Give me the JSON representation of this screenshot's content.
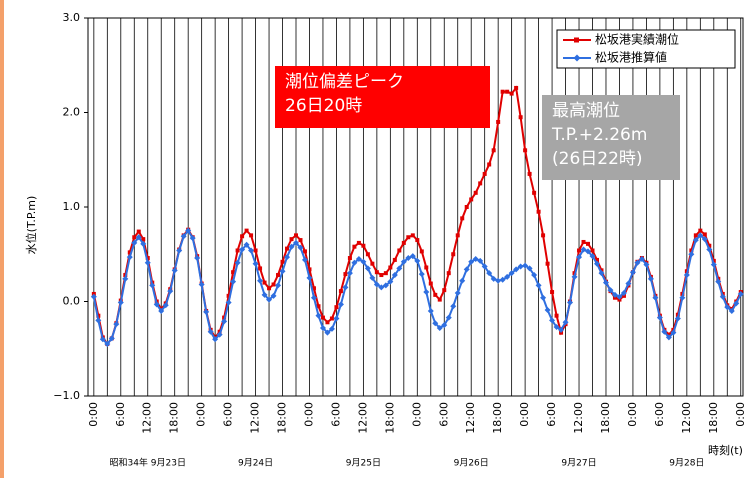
{
  "chart_data": {
    "type": "line",
    "ylabel": "水位(T.P.m)",
    "xlabel": "時刻(t)",
    "x": [
      0,
      1,
      2,
      3,
      4,
      5,
      6,
      7,
      8,
      9,
      10,
      11,
      12,
      13,
      14,
      15,
      16,
      17,
      18,
      19,
      20,
      21,
      22,
      23,
      24,
      25,
      26,
      27,
      28,
      29,
      30,
      31,
      32,
      33,
      34,
      35,
      36,
      37,
      38,
      39,
      40,
      41,
      42,
      43,
      44,
      45,
      46,
      47,
      48,
      49,
      50,
      51,
      52,
      53,
      54,
      55,
      56,
      57,
      58,
      59,
      60,
      61,
      62,
      63,
      64,
      65,
      66,
      67,
      68,
      69,
      70,
      71,
      72,
      73,
      74,
      75,
      76,
      77,
      78,
      79,
      80,
      81,
      82,
      83,
      84,
      85,
      86,
      87,
      88,
      89,
      90,
      91,
      92,
      93,
      94,
      95,
      96,
      97,
      98,
      99,
      100,
      101,
      102,
      103,
      104,
      105,
      106,
      107,
      108,
      109,
      110,
      111,
      112,
      113,
      114,
      115,
      116,
      117,
      118,
      119,
      120,
      121,
      122,
      123,
      124,
      125,
      126,
      127,
      128,
      129,
      130,
      131,
      132,
      133,
      134,
      135,
      136,
      137,
      138,
      139,
      140,
      141,
      142,
      143,
      144
    ],
    "series": [
      {
        "name": "松坂港実績潮位",
        "color": "#e00000",
        "marker": "square",
        "values": [
          0.08,
          -0.15,
          -0.38,
          -0.45,
          -0.39,
          -0.23,
          0.01,
          0.28,
          0.52,
          0.68,
          0.74,
          0.66,
          0.46,
          0.2,
          0.0,
          -0.08,
          -0.02,
          0.13,
          0.34,
          0.55,
          0.7,
          0.76,
          0.68,
          0.48,
          0.19,
          -0.1,
          -0.3,
          -0.38,
          -0.32,
          -0.17,
          0.06,
          0.31,
          0.54,
          0.69,
          0.75,
          0.7,
          0.54,
          0.35,
          0.2,
          0.14,
          0.18,
          0.28,
          0.42,
          0.56,
          0.66,
          0.7,
          0.65,
          0.53,
          0.34,
          0.14,
          -0.05,
          -0.17,
          -0.22,
          -0.18,
          -0.06,
          0.11,
          0.29,
          0.46,
          0.58,
          0.62,
          0.59,
          0.5,
          0.4,
          0.31,
          0.28,
          0.3,
          0.36,
          0.44,
          0.54,
          0.62,
          0.68,
          0.7,
          0.65,
          0.53,
          0.36,
          0.19,
          0.07,
          0.02,
          0.12,
          0.3,
          0.5,
          0.7,
          0.88,
          1.0,
          1.08,
          1.15,
          1.25,
          1.35,
          1.45,
          1.6,
          1.9,
          2.22,
          2.22,
          2.2,
          2.26,
          1.95,
          1.6,
          1.35,
          1.15,
          0.95,
          0.7,
          0.4,
          0.1,
          -0.15,
          -0.33,
          -0.24,
          0.0,
          0.3,
          0.54,
          0.63,
          0.61,
          0.54,
          0.44,
          0.33,
          0.21,
          0.11,
          0.04,
          0.02,
          0.06,
          0.17,
          0.31,
          0.42,
          0.46,
          0.41,
          0.26,
          0.06,
          -0.15,
          -0.3,
          -0.35,
          -0.3,
          -0.14,
          0.08,
          0.32,
          0.54,
          0.7,
          0.75,
          0.71,
          0.59,
          0.43,
          0.24,
          0.08,
          -0.04,
          -0.08,
          0.0,
          0.1
        ]
      },
      {
        "name": "松坂港推算値",
        "color": "#2f6fe0",
        "marker": "diamond",
        "values": [
          0.05,
          -0.2,
          -0.4,
          -0.45,
          -0.39,
          -0.24,
          -0.01,
          0.24,
          0.47,
          0.62,
          0.68,
          0.61,
          0.41,
          0.17,
          -0.03,
          -0.1,
          -0.04,
          0.11,
          0.33,
          0.54,
          0.69,
          0.75,
          0.67,
          0.46,
          0.18,
          -0.11,
          -0.32,
          -0.4,
          -0.35,
          -0.21,
          -0.01,
          0.21,
          0.41,
          0.55,
          0.6,
          0.54,
          0.4,
          0.22,
          0.07,
          0.02,
          0.06,
          0.17,
          0.32,
          0.47,
          0.58,
          0.62,
          0.57,
          0.44,
          0.25,
          0.04,
          -0.15,
          -0.28,
          -0.33,
          -0.29,
          -0.18,
          -0.03,
          0.15,
          0.3,
          0.41,
          0.45,
          0.42,
          0.35,
          0.25,
          0.18,
          0.15,
          0.17,
          0.21,
          0.28,
          0.35,
          0.42,
          0.46,
          0.48,
          0.43,
          0.29,
          0.1,
          -0.1,
          -0.23,
          -0.28,
          -0.25,
          -0.17,
          -0.05,
          0.09,
          0.22,
          0.34,
          0.42,
          0.45,
          0.43,
          0.37,
          0.3,
          0.24,
          0.22,
          0.23,
          0.26,
          0.3,
          0.34,
          0.37,
          0.38,
          0.35,
          0.28,
          0.17,
          0.04,
          -0.09,
          -0.2,
          -0.27,
          -0.3,
          -0.22,
          -0.01,
          0.26,
          0.47,
          0.55,
          0.53,
          0.48,
          0.4,
          0.3,
          0.2,
          0.12,
          0.07,
          0.05,
          0.09,
          0.19,
          0.31,
          0.41,
          0.45,
          0.39,
          0.24,
          0.04,
          -0.17,
          -0.32,
          -0.38,
          -0.33,
          -0.18,
          0.04,
          0.28,
          0.5,
          0.65,
          0.7,
          0.66,
          0.55,
          0.39,
          0.21,
          0.05,
          -0.06,
          -0.1,
          -0.02,
          0.08
        ]
      }
    ],
    "xlim": [
      -1.3,
      144.5
    ],
    "ylim": [
      -1,
      3
    ],
    "yticks": [
      {
        "value": -1,
        "label": "−1.0"
      },
      {
        "value": 0,
        "label": "0.0"
      },
      {
        "value": 1,
        "label": "1.0"
      },
      {
        "value": 2,
        "label": "2.0"
      },
      {
        "value": 3,
        "label": "3.0"
      }
    ],
    "xticks": [
      {
        "value": 0,
        "label": "0:00"
      },
      {
        "value": 6,
        "label": "6:00"
      },
      {
        "value": 12,
        "label": "12:00"
      },
      {
        "value": 18,
        "label": "18:00"
      },
      {
        "value": 24,
        "label": "0:00"
      },
      {
        "value": 30,
        "label": "6:00"
      },
      {
        "value": 36,
        "label": "12:00"
      },
      {
        "value": 42,
        "label": "18:00"
      },
      {
        "value": 48,
        "label": "0:00"
      },
      {
        "value": 54,
        "label": "6:00"
      },
      {
        "value": 60,
        "label": "12:00"
      },
      {
        "value": 66,
        "label": "18:00"
      },
      {
        "value": 72,
        "label": "0:00"
      },
      {
        "value": 78,
        "label": "6:00"
      },
      {
        "value": 84,
        "label": "12:00"
      },
      {
        "value": 90,
        "label": "18:00"
      },
      {
        "value": 96,
        "label": "0:00"
      },
      {
        "value": 102,
        "label": "6:00"
      },
      {
        "value": 108,
        "label": "12:00"
      },
      {
        "value": 114,
        "label": "18:00"
      },
      {
        "value": 120,
        "label": "0:00"
      },
      {
        "value": 126,
        "label": "6:00"
      },
      {
        "value": 132,
        "label": "12:00"
      },
      {
        "value": 138,
        "label": "18:00"
      },
      {
        "value": 144,
        "label": "0:00"
      }
    ],
    "xminorticks": [
      3,
      9,
      15,
      21,
      27,
      33,
      39,
      45,
      51,
      57,
      63,
      69,
      75,
      81,
      87,
      93,
      99,
      105,
      111,
      117,
      123,
      129,
      135,
      141
    ],
    "date_labels": [
      {
        "value": 12,
        "label": "昭和34年 9月23日"
      },
      {
        "value": 36,
        "label": "9月24日"
      },
      {
        "value": 60,
        "label": "9月25日"
      },
      {
        "value": 84,
        "label": "9月26日"
      },
      {
        "value": 108,
        "label": "9月27日"
      },
      {
        "value": 132,
        "label": "9月28日"
      }
    ],
    "grid": true,
    "legend": "upper right",
    "annotations": [
      {
        "lines": [
          "潮位偏差ピーク",
          "26日20時"
        ],
        "color": "#ff0000"
      },
      {
        "lines": [
          "最高潮位",
          "T.P.+2.26m",
          "(26日22時)"
        ],
        "color": "#a6a6a6"
      }
    ]
  }
}
